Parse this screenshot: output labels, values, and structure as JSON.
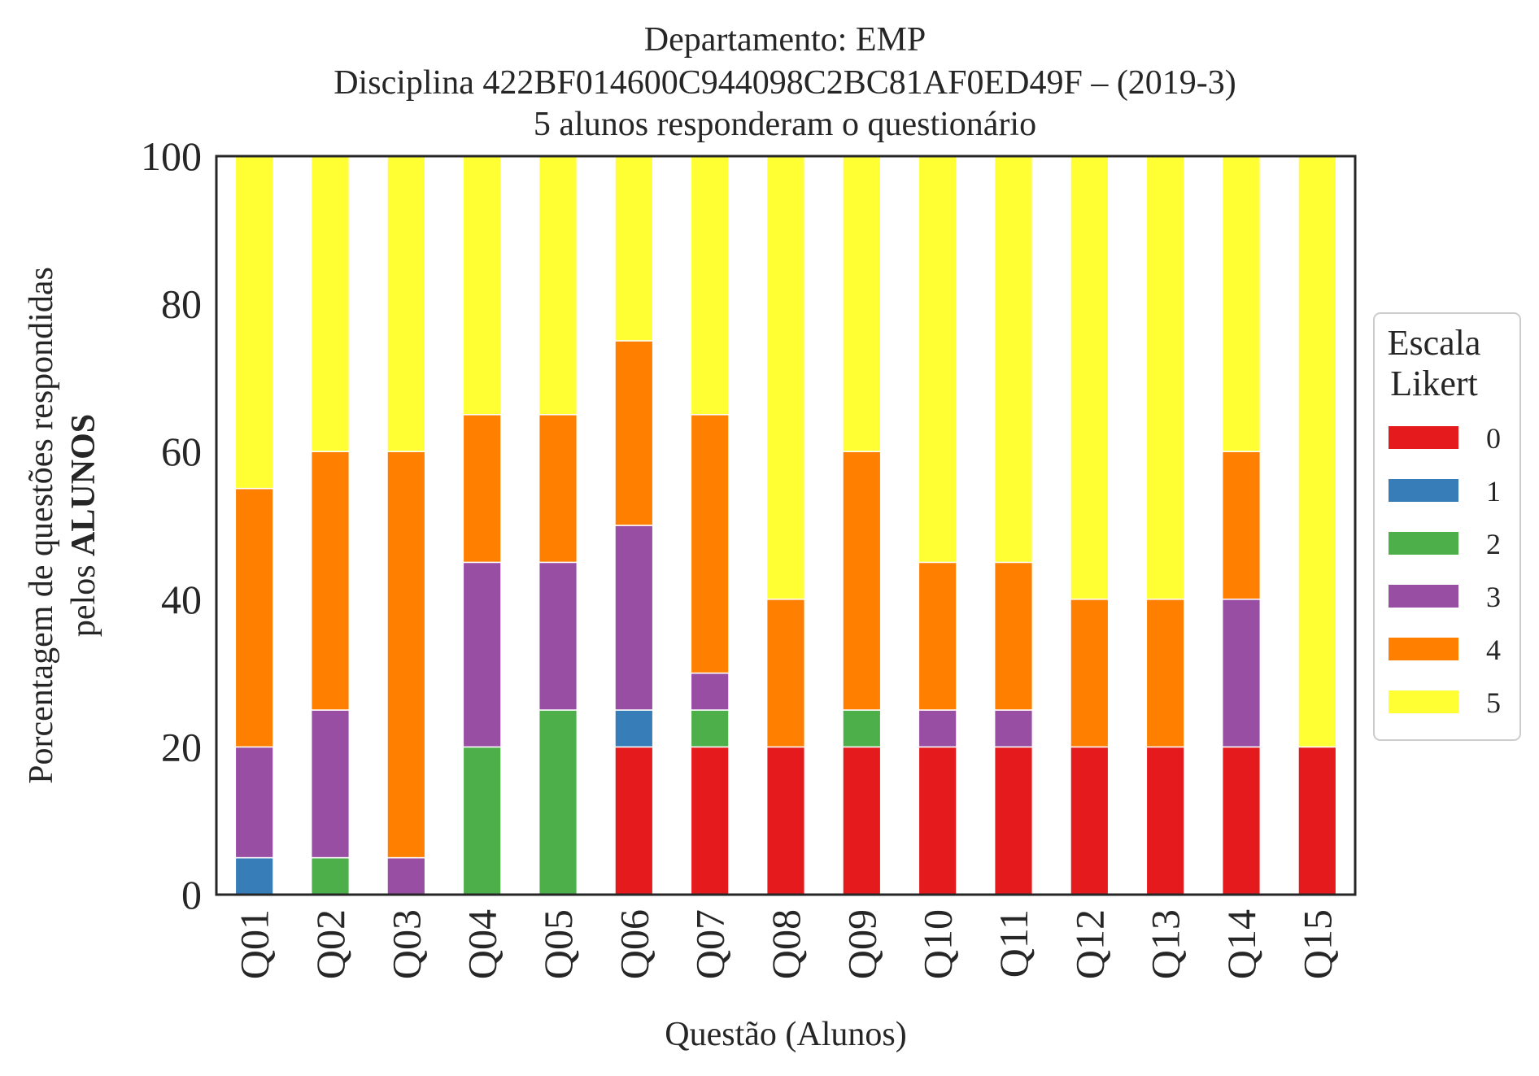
{
  "chart_data": {
    "type": "bar",
    "stacked": true,
    "title": [
      "Departamento: EMP",
      "Disciplina 422BF014600C944098C2BC81AF0ED49F – (2019-3)",
      "5 alunos responderam o questionário"
    ],
    "xlabel": "Questão (Alunos)",
    "ylabel_line1": "Porcentagem de questões respondidas",
    "ylabel_line2_prefix": "pelos ",
    "ylabel_line2_bold": "ALUNOS",
    "ylim": [
      0,
      100
    ],
    "yticks": [
      "0",
      "20",
      "40",
      "60",
      "80",
      "100"
    ],
    "grid": false,
    "legend_placement": "right-outside",
    "legend_title": [
      "Escala",
      "Likert"
    ],
    "categories": [
      "Q01",
      "Q02",
      "Q03",
      "Q04",
      "Q05",
      "Q06",
      "Q07",
      "Q08",
      "Q09",
      "Q10",
      "Q11",
      "Q12",
      "Q13",
      "Q14",
      "Q15"
    ],
    "series": [
      {
        "name": "0",
        "color": "#e41a1c",
        "values": [
          0,
          0,
          0,
          0,
          0,
          20,
          20,
          20,
          20,
          20,
          20,
          20,
          20,
          20,
          20
        ]
      },
      {
        "name": "1",
        "color": "#377eb8",
        "values": [
          5,
          0,
          0,
          0,
          0,
          5,
          0,
          0,
          0,
          0,
          0,
          0,
          0,
          0,
          0
        ]
      },
      {
        "name": "2",
        "color": "#4daf4a",
        "values": [
          0,
          5,
          0,
          20,
          25,
          0,
          5,
          0,
          5,
          0,
          0,
          0,
          0,
          0,
          0
        ]
      },
      {
        "name": "3",
        "color": "#984ea3",
        "values": [
          15,
          20,
          5,
          25,
          20,
          25,
          5,
          0,
          0,
          5,
          5,
          0,
          0,
          20,
          0
        ]
      },
      {
        "name": "4",
        "color": "#ff7f00",
        "values": [
          35,
          35,
          55,
          20,
          20,
          25,
          35,
          20,
          35,
          20,
          20,
          20,
          20,
          20,
          0
        ]
      },
      {
        "name": "5",
        "color": "#ffff33",
        "values": [
          45,
          40,
          40,
          35,
          35,
          25,
          35,
          60,
          40,
          55,
          55,
          60,
          60,
          40,
          80
        ]
      }
    ]
  }
}
